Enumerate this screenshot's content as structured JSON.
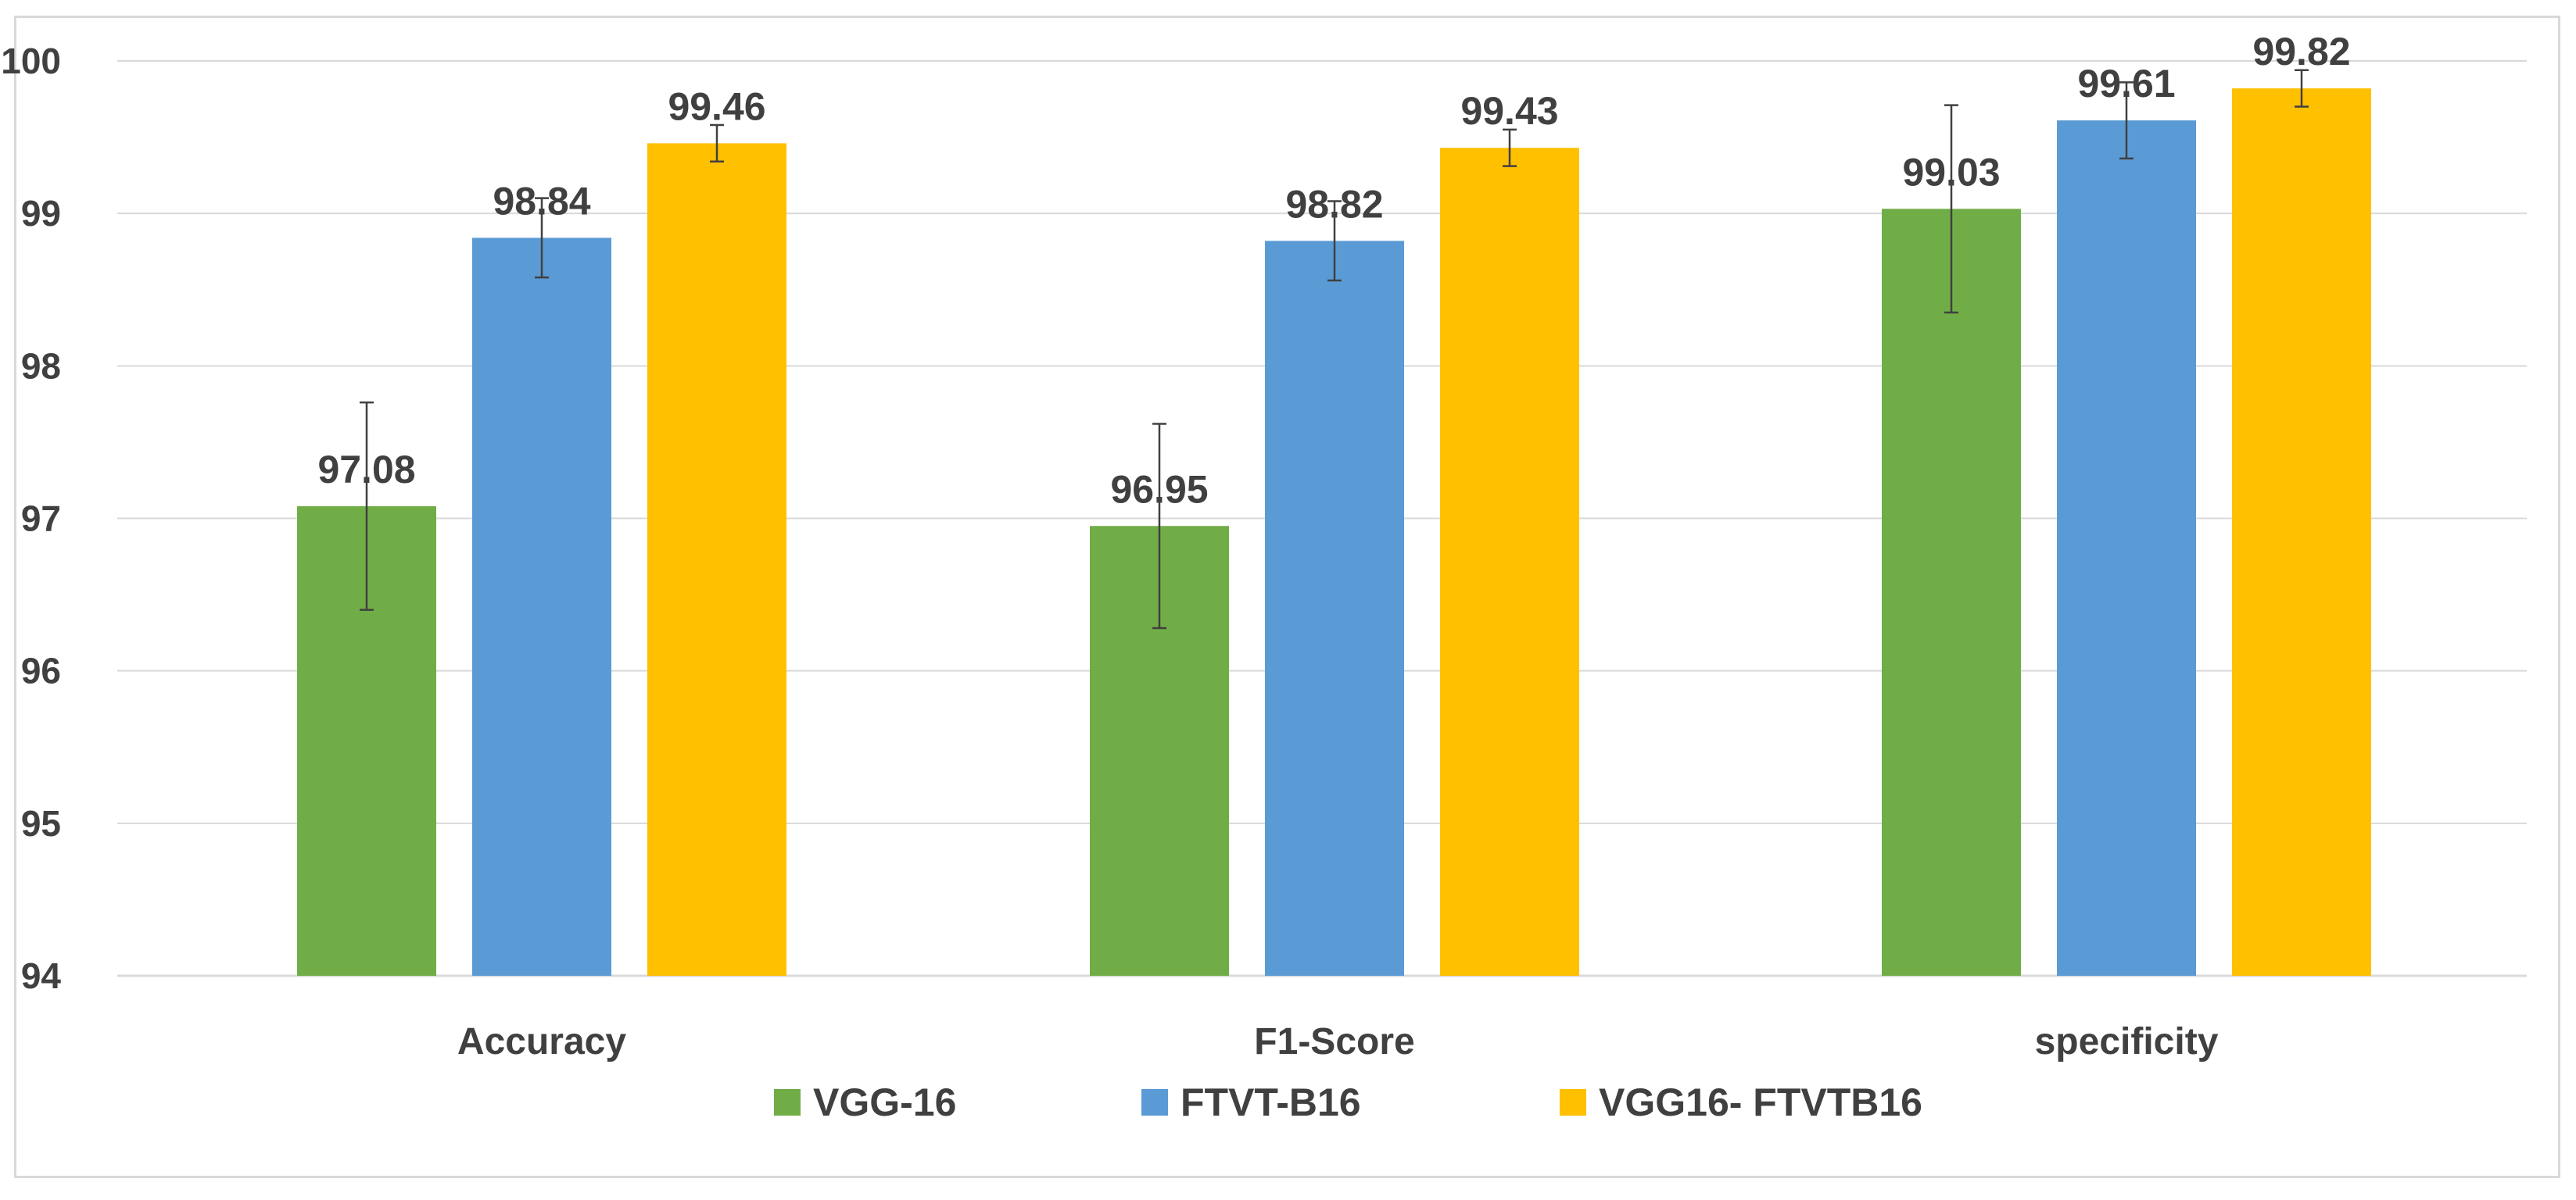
{
  "chart_data": {
    "type": "bar",
    "title": "",
    "xlabel": "",
    "ylabel": "",
    "ylim": [
      94,
      100
    ],
    "yticks": [
      94,
      95,
      96,
      97,
      98,
      99,
      100
    ],
    "categories": [
      "Accuracy",
      "F1-Score",
      "specificity"
    ],
    "grid": true,
    "legend_position": "bottom",
    "series": [
      {
        "name": "VGG-16",
        "color": "#70ad47",
        "values": [
          97.08,
          96.95,
          99.03
        ],
        "labels": [
          "97.08",
          "96.95",
          "99.03"
        ],
        "error": [
          0.68,
          0.67,
          0.68
        ]
      },
      {
        "name": "FTVT-B16",
        "color": "#5b9bd5",
        "values": [
          98.84,
          98.82,
          99.61
        ],
        "labels": [
          "98.84",
          "98.82",
          "99.61"
        ],
        "error": [
          0.26,
          0.26,
          0.25
        ]
      },
      {
        "name": "VGG16- FTVTB16",
        "color": "#ffc000",
        "values": [
          99.46,
          99.43,
          99.82
        ],
        "labels": [
          "99.46",
          "99.43",
          "99.82"
        ],
        "error": [
          0.12,
          0.12,
          0.12
        ]
      }
    ]
  }
}
